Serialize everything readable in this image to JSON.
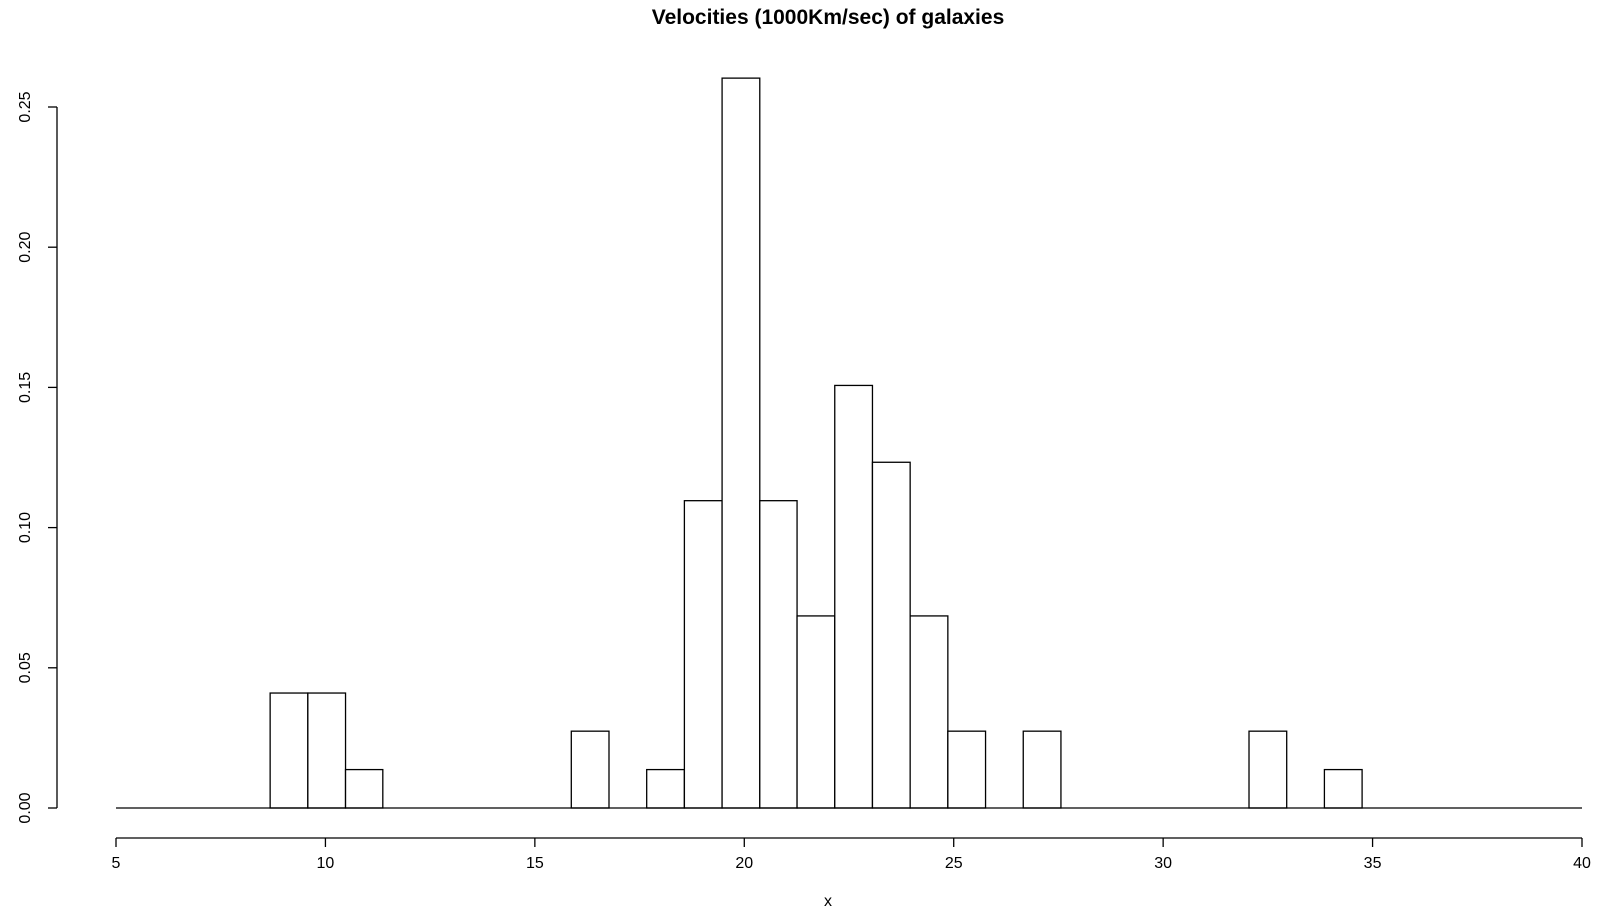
{
  "chart_data": {
    "type": "bar",
    "title": "Velocities (1000Km/sec) of galaxies",
    "xlabel": "x",
    "ylabel": "",
    "xlim": [
      5,
      40
    ],
    "ylim": [
      0,
      0.25
    ],
    "x_ticks": [
      "5",
      "10",
      "15",
      "20",
      "25",
      "30",
      "35",
      "40"
    ],
    "y_ticks": [
      "0.00",
      "0.05",
      "0.10",
      "0.15",
      "0.20",
      "0.25"
    ],
    "grid": false,
    "bars": [
      {
        "x0": 8.68,
        "x1": 9.58,
        "value": 0.041
      },
      {
        "x0": 9.58,
        "x1": 10.48,
        "value": 0.041
      },
      {
        "x0": 10.48,
        "x1": 11.37,
        "value": 0.0137
      },
      {
        "x0": 15.87,
        "x1": 16.77,
        "value": 0.0274
      },
      {
        "x0": 17.67,
        "x1": 18.57,
        "value": 0.0137
      },
      {
        "x0": 18.57,
        "x1": 19.47,
        "value": 0.1096
      },
      {
        "x0": 19.47,
        "x1": 20.37,
        "value": 0.2603
      },
      {
        "x0": 20.37,
        "x1": 21.26,
        "value": 0.1096
      },
      {
        "x0": 21.26,
        "x1": 22.16,
        "value": 0.0685
      },
      {
        "x0": 22.16,
        "x1": 23.06,
        "value": 0.1507
      },
      {
        "x0": 23.06,
        "x1": 23.96,
        "value": 0.1233
      },
      {
        "x0": 23.96,
        "x1": 24.86,
        "value": 0.0685
      },
      {
        "x0": 24.86,
        "x1": 25.76,
        "value": 0.0274
      },
      {
        "x0": 26.66,
        "x1": 27.56,
        "value": 0.0274
      },
      {
        "x0": 32.05,
        "x1": 32.95,
        "value": 0.0274
      },
      {
        "x0": 33.85,
        "x1": 34.75,
        "value": 0.0137
      }
    ]
  }
}
